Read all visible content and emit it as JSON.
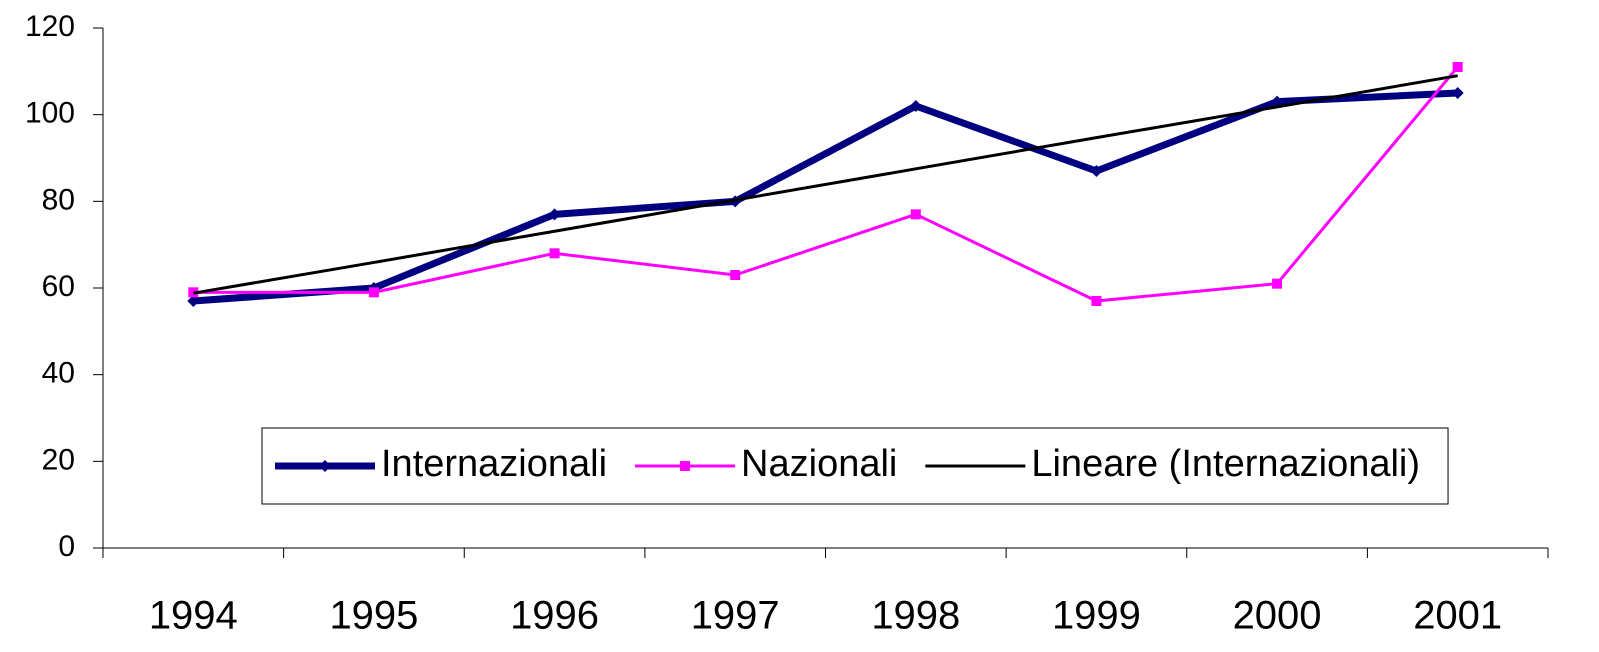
{
  "chart_data": {
    "type": "line",
    "categories": [
      "1994",
      "1995",
      "1996",
      "1997",
      "1998",
      "1999",
      "2000",
      "2001"
    ],
    "series": [
      {
        "name": "Internazionali",
        "color": "#000080",
        "marker": "diamond",
        "values": [
          57,
          60,
          77,
          80,
          102,
          87,
          103,
          105
        ]
      },
      {
        "name": "Nazionali",
        "color": "#ff00ff",
        "marker": "square",
        "values": [
          59,
          59,
          68,
          63,
          77,
          57,
          61,
          111
        ]
      },
      {
        "name": "Lineare (Internazionali)",
        "color": "#000000",
        "marker": "none",
        "values": [
          58.8,
          65.9,
          73.1,
          80.3,
          87.5,
          94.7,
          101.8,
          109.0
        ]
      }
    ],
    "ylim": [
      0,
      120
    ],
    "yticks": [
      0,
      20,
      40,
      60,
      80,
      100,
      120
    ],
    "grid": false,
    "legend": "bottom-right"
  }
}
